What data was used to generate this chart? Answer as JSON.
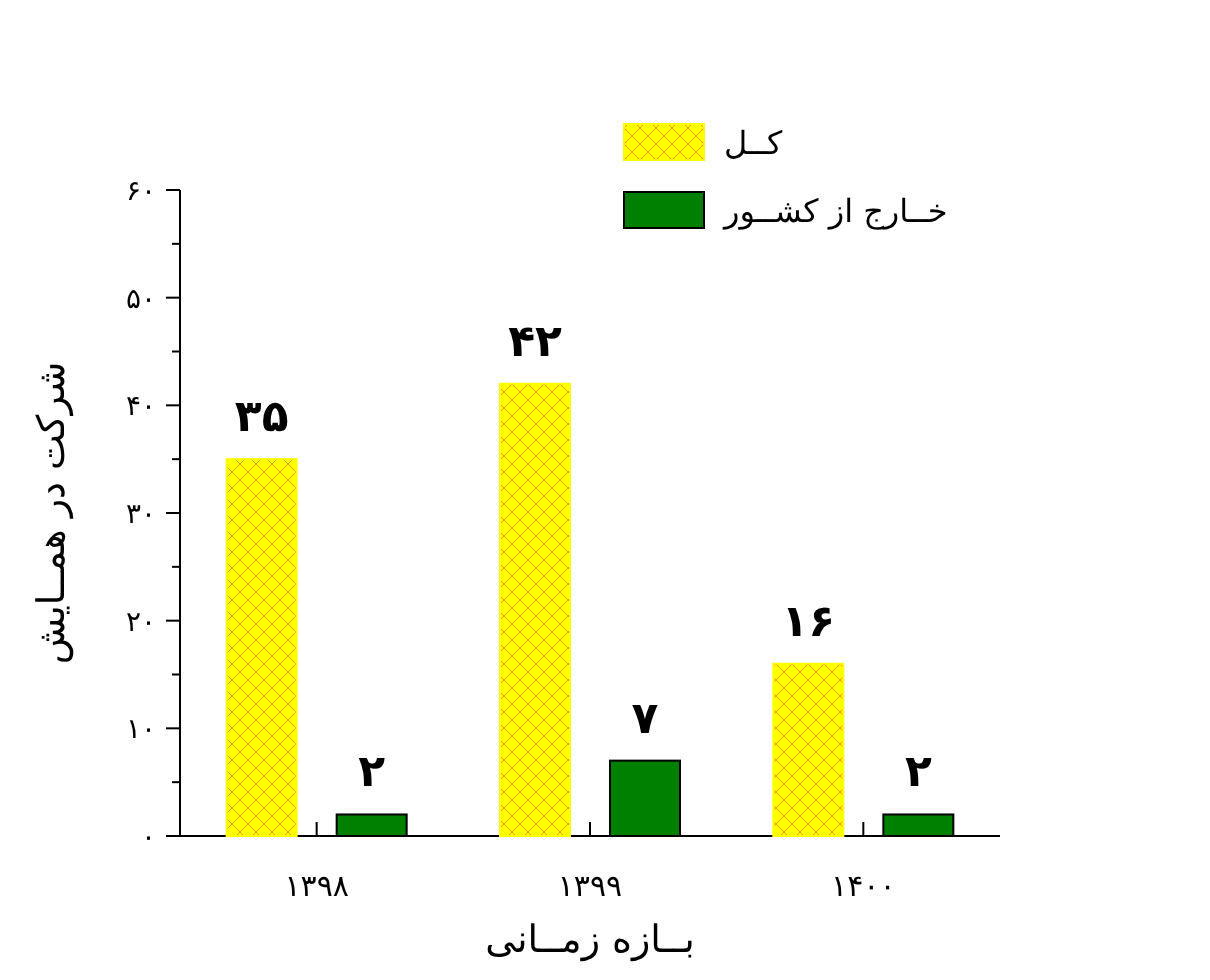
{
  "chart_data": {
    "type": "bar",
    "xlabel": "بــازه زمــانی",
    "ylabel": "شرکت در همــایش",
    "categories": [
      "۱۳۹۸",
      "۱۳۹۹",
      "۱۴۰۰"
    ],
    "series": [
      {
        "name": "کــل",
        "color": "#ffff00",
        "values": [
          35,
          42,
          16
        ],
        "value_labels": [
          "۳۵",
          "۴۲",
          "۱۶"
        ]
      },
      {
        "name": "خــارج از کشــور",
        "color": "#008000",
        "values": [
          2,
          7,
          2
        ],
        "value_labels": [
          "۲",
          "۷",
          "۲"
        ]
      }
    ],
    "ylim": [
      0,
      60
    ],
    "yticks": [
      {
        "value": 0,
        "label": "۰"
      },
      {
        "value": 5,
        "label": null
      },
      {
        "value": 10,
        "label": "۱۰"
      },
      {
        "value": 15,
        "label": null
      },
      {
        "value": 20,
        "label": "۲۰"
      },
      {
        "value": 25,
        "label": null
      },
      {
        "value": 30,
        "label": "۳۰"
      },
      {
        "value": 35,
        "label": null
      },
      {
        "value": 40,
        "label": "۴۰"
      },
      {
        "value": 45,
        "label": null
      },
      {
        "value": 50,
        "label": "۵۰"
      },
      {
        "value": 55,
        "label": null
      },
      {
        "value": 60,
        "label": "۶۰"
      }
    ],
    "grid": false,
    "legend": "top right"
  }
}
